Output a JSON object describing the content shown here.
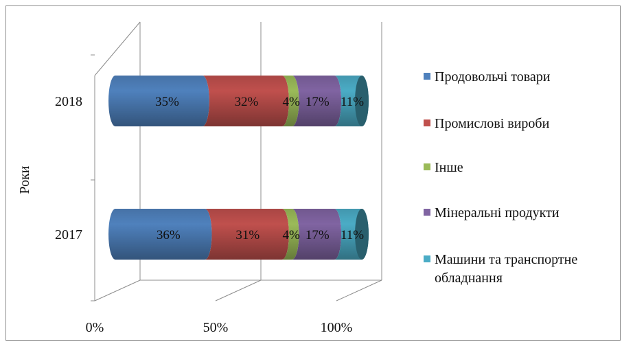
{
  "chart_data": {
    "type": "bar",
    "orientation": "horizontal",
    "stacked": "percent",
    "style": "3d-cylinder",
    "ylabel": "Роки",
    "xlabel": "",
    "categories": [
      "2017",
      "2018"
    ],
    "xlim": [
      0,
      100
    ],
    "x_ticks": [
      "0%",
      "50%",
      "100%"
    ],
    "grid": true,
    "legend_position": "right",
    "series": [
      {
        "name": "Продовольчі товари",
        "values": [
          36,
          35
        ],
        "labels": [
          "36%",
          "35%"
        ],
        "color": "#4f81bd"
      },
      {
        "name": "Промислові вироби",
        "values": [
          31,
          32
        ],
        "labels": [
          "31%",
          "32%"
        ],
        "color": "#c0504d"
      },
      {
        "name": "Інше",
        "values": [
          4,
          4
        ],
        "labels": [
          "4%",
          "4%"
        ],
        "color": "#9bbb59"
      },
      {
        "name": "Мінеральні продукти",
        "values": [
          17,
          17
        ],
        "labels": [
          "17%",
          "17%"
        ],
        "color": "#8064a2"
      },
      {
        "name": "Машини та транспортне обладнання",
        "values": [
          11,
          11
        ],
        "labels": [
          "11%",
          "11%"
        ],
        "color": "#4bacc6"
      }
    ]
  }
}
